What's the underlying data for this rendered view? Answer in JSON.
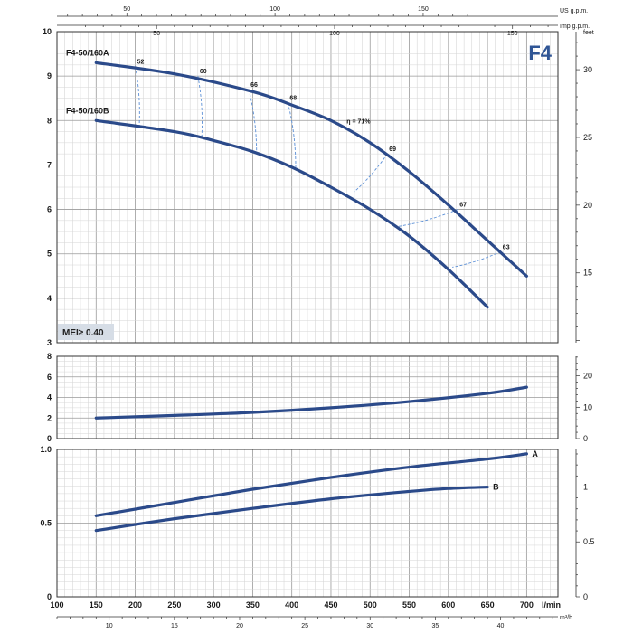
{
  "chart_data": [
    {
      "type": "line",
      "panel": "head",
      "badge": "F4",
      "mei_label": "MEI≥ 0.40",
      "xlabel": "l/min",
      "x_ticks": [
        100,
        150,
        200,
        250,
        300,
        350,
        400,
        450,
        500,
        550,
        600,
        650,
        700
      ],
      "xlim": [
        100,
        740
      ],
      "ylim": [
        3,
        10
      ],
      "y_ticks": [
        3,
        4,
        5,
        6,
        7,
        8,
        9,
        10
      ],
      "y2label": "feet",
      "y2_ticks": [
        15,
        20,
        25,
        30
      ],
      "top_axes": [
        {
          "label": "US g.p.m.",
          "ticks": [
            50,
            100,
            150
          ]
        },
        {
          "label": "Imp g.p.m.",
          "ticks": [
            50,
            100,
            150
          ]
        }
      ],
      "bottom_axis": {
        "label": "m³/h",
        "ticks": [
          10,
          15,
          20,
          25,
          30,
          35,
          40
        ]
      },
      "grid": true,
      "series": [
        {
          "name": "F4-50/160A",
          "x": [
            150,
            250,
            350,
            400,
            450,
            500,
            550,
            600,
            650,
            700
          ],
          "y": [
            9.3,
            9.05,
            8.65,
            8.35,
            8.0,
            7.5,
            6.85,
            6.1,
            5.3,
            4.5
          ]
        },
        {
          "name": "F4-50/160B",
          "x": [
            150,
            250,
            300,
            350,
            400,
            450,
            500,
            550,
            600,
            650
          ],
          "y": [
            8.0,
            7.75,
            7.55,
            7.3,
            6.95,
            6.5,
            6.0,
            5.4,
            4.65,
            3.8
          ]
        }
      ],
      "efficiency_lines": [
        {
          "label": "52",
          "from": [
            200,
            9.22
          ],
          "to": [
            205,
            7.85
          ]
        },
        {
          "label": "60",
          "from": [
            280,
            9.0
          ],
          "to": [
            285,
            7.65
          ]
        },
        {
          "label": "66",
          "from": [
            345,
            8.7
          ],
          "to": [
            355,
            7.3
          ]
        },
        {
          "label": "68",
          "from": [
            395,
            8.4
          ],
          "to": [
            405,
            6.95
          ]
        },
        {
          "label": "69",
          "from": [
            522,
            7.25
          ],
          "to": [
            480,
            6.4
          ]
        },
        {
          "label": "67",
          "from": [
            612,
            6.0
          ],
          "to": [
            530,
            5.6
          ]
        },
        {
          "label": "63",
          "from": [
            667,
            5.05
          ],
          "to": [
            605,
            4.7
          ]
        }
      ],
      "annotations": [
        {
          "text": "η = 71%",
          "x": 470,
          "y": 8.0
        }
      ]
    },
    {
      "type": "line",
      "panel": "npsh",
      "xlim": [
        100,
        740
      ],
      "ylim": [
        0,
        8
      ],
      "y_ticks": [
        0,
        2,
        4,
        6,
        8
      ],
      "y2_ticks": [
        0,
        10,
        20
      ],
      "grid": true,
      "series": [
        {
          "x": [
            150,
            250,
            350,
            450,
            550,
            650,
            700
          ],
          "y": [
            2.0,
            2.25,
            2.55,
            3.0,
            3.6,
            4.4,
            5.0
          ]
        }
      ]
    },
    {
      "type": "line",
      "panel": "power",
      "xlim": [
        100,
        740
      ],
      "ylim": [
        0,
        1.0
      ],
      "y_ticks": [
        0,
        0.5,
        1.0
      ],
      "y_tick_labels": [
        "0",
        "0.5",
        "1.0"
      ],
      "y2_ticks": [
        0,
        0.5,
        1
      ],
      "y2_tick_labels": [
        "0",
        "0.5",
        "1"
      ],
      "grid": true,
      "series": [
        {
          "name": "A",
          "x": [
            150,
            250,
            350,
            450,
            550,
            650,
            700
          ],
          "y": [
            0.55,
            0.64,
            0.73,
            0.81,
            0.88,
            0.935,
            0.97
          ]
        },
        {
          "name": "B",
          "x": [
            150,
            250,
            350,
            450,
            550,
            600,
            650
          ],
          "y": [
            0.45,
            0.53,
            0.6,
            0.665,
            0.715,
            0.735,
            0.745
          ]
        }
      ]
    }
  ]
}
